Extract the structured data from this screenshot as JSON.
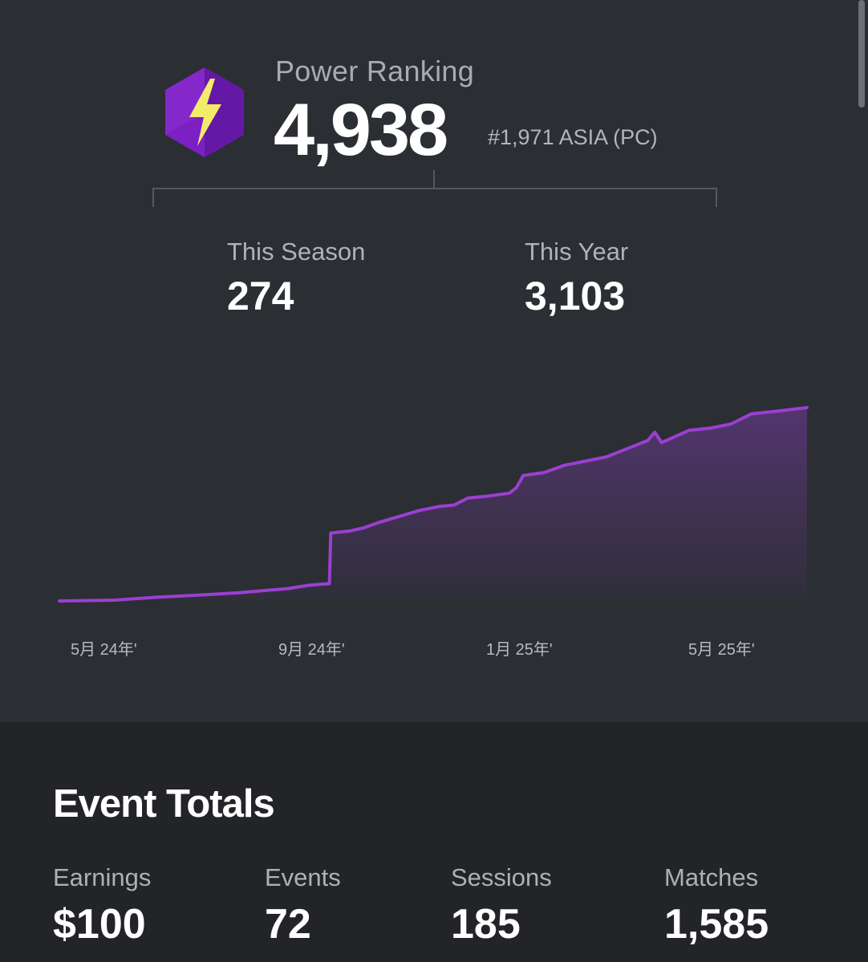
{
  "power_ranking": {
    "label": "Power Ranking",
    "value": "4,938",
    "region_rank": "#1,971 ASIA (PC)",
    "icon": "lightning-bolt-icon"
  },
  "stats": {
    "season": {
      "label": "This Season",
      "value": "274"
    },
    "year": {
      "label": "This Year",
      "value": "3,103"
    }
  },
  "chart_data": {
    "type": "area",
    "title": "",
    "xlabel": "",
    "ylabel": "",
    "x_ticks": [
      "5月 24年'",
      "9月 24年'",
      "1月 25年'",
      "5月 25年'"
    ],
    "grid": false,
    "line_color": "#9b3fd1",
    "series": [
      {
        "values": [
          [
            0,
            0
          ],
          [
            8,
            20
          ],
          [
            14,
            90
          ],
          [
            20,
            140
          ],
          [
            26,
            200
          ],
          [
            30,
            260
          ],
          [
            33,
            300
          ],
          [
            36,
            380
          ],
          [
            38,
            410
          ],
          [
            39,
            420
          ],
          [
            39.2,
            1650
          ],
          [
            42,
            1700
          ],
          [
            44,
            1780
          ],
          [
            46,
            1900
          ],
          [
            48,
            2000
          ],
          [
            50,
            2100
          ],
          [
            52,
            2200
          ],
          [
            55,
            2300
          ],
          [
            57,
            2330
          ],
          [
            59,
            2500
          ],
          [
            62,
            2550
          ],
          [
            65,
            2620
          ],
          [
            66,
            2750
          ],
          [
            67,
            3050
          ],
          [
            70,
            3120
          ],
          [
            73,
            3300
          ],
          [
            76,
            3400
          ],
          [
            79,
            3500
          ],
          [
            82,
            3700
          ],
          [
            85,
            3900
          ],
          [
            86,
            4100
          ],
          [
            87,
            3850
          ],
          [
            89,
            4000
          ],
          [
            91,
            4150
          ],
          [
            94,
            4200
          ],
          [
            97,
            4300
          ],
          [
            100,
            4550
          ],
          [
            104,
            4620
          ],
          [
            108,
            4700
          ]
        ]
      }
    ]
  },
  "event_totals": {
    "title": "Event Totals",
    "items": [
      {
        "label": "Earnings",
        "value": "$100"
      },
      {
        "label": "Events",
        "value": "72"
      },
      {
        "label": "Sessions",
        "value": "185"
      },
      {
        "label": "Matches",
        "value": "1,585"
      }
    ]
  },
  "colors": {
    "accent": "#9b3fd1",
    "icon_hex": "#7b1fc2",
    "bolt": "#f2ec6a",
    "panel_top": "#2b2e33",
    "panel_bottom": "#222428"
  }
}
